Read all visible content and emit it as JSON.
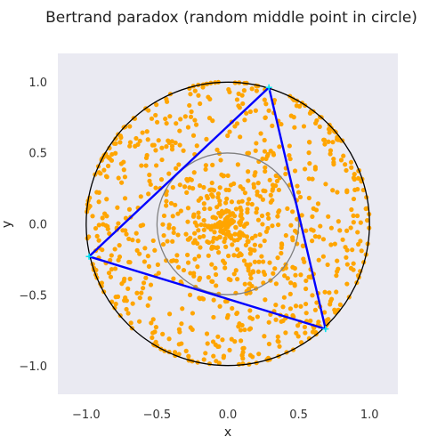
{
  "chart_data": {
    "type": "scatter",
    "title": "Bertrand paradox (random middle point in circle)",
    "xlabel": "x",
    "ylabel": "y",
    "xlim": [
      -1.2,
      1.2
    ],
    "ylim": [
      -1.2,
      1.2
    ],
    "xticks": [
      "−1.0",
      "−0.5",
      "0.0",
      "0.5",
      "1.0"
    ],
    "xtick_values": [
      -1.0,
      -0.5,
      0.0,
      0.5,
      1.0
    ],
    "yticks": [
      "1.0",
      "0.5",
      "0.0",
      "−0.5",
      "−1.0"
    ],
    "ytick_values": [
      1.0,
      0.5,
      0.0,
      -0.5,
      -1.0
    ],
    "grid": false,
    "background_color": "#eaeaf2",
    "outer_circle": {
      "center": [
        0,
        0
      ],
      "radius": 1.0,
      "color": "#000000"
    },
    "inner_circle": {
      "center": [
        0,
        0
      ],
      "radius": 0.5,
      "color": "#808080"
    },
    "triangle": {
      "color": "#0000ff",
      "vertex_color": "#00e5ee",
      "vertices": [
        [
          0.29,
          0.96
        ],
        [
          -0.98,
          -0.23
        ],
        [
          0.69,
          -0.74
        ]
      ]
    },
    "points": {
      "color": "#ffa500",
      "count": 1000,
      "distribution": "midpoints of random chords (random middle point), concentrated toward the rim"
    }
  }
}
